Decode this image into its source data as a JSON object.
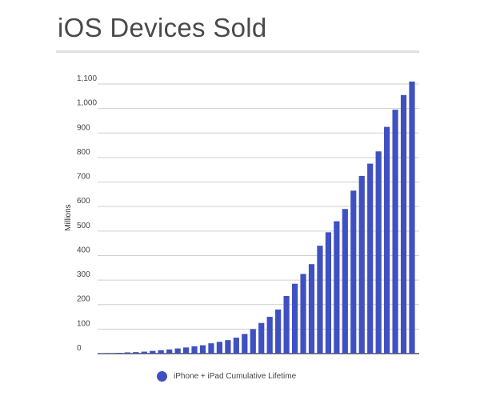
{
  "title": "iOS Devices Sold",
  "chart_data": {
    "type": "bar",
    "title": "iOS Devices Sold",
    "ylabel": "Millions",
    "xlabel": "",
    "ylim": [
      0,
      1100
    ],
    "yticks": [
      0,
      100,
      200,
      300,
      400,
      500,
      600,
      700,
      800,
      900,
      1000,
      1100
    ],
    "yticks_labels": [
      "0",
      "100",
      "200",
      "300",
      "400",
      "500",
      "600",
      "700",
      "800",
      "900",
      "1,000",
      "1,100"
    ],
    "grid": true,
    "legend_position": "bottom",
    "color": "#3f51c1",
    "series": [
      {
        "name": "iPhone + iPad Cumulative Lifetime",
        "values": [
          1,
          2,
          3,
          5,
          6,
          8,
          11,
          14,
          17,
          21,
          25,
          30,
          34,
          42,
          48,
          55,
          65,
          80,
          100,
          125,
          150,
          180,
          235,
          285,
          325,
          365,
          440,
          495,
          540,
          590,
          665,
          725,
          775,
          825,
          925,
          995,
          1055,
          1110
        ]
      }
    ]
  }
}
